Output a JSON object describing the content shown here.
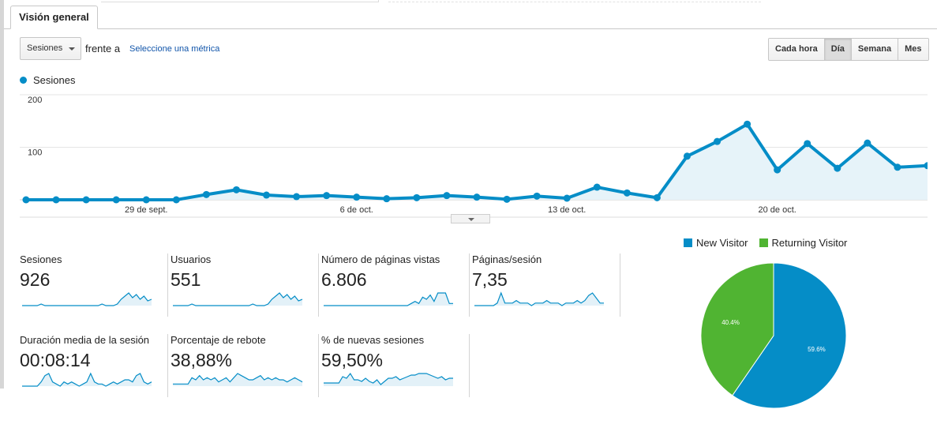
{
  "tab": {
    "label": "Visión general"
  },
  "controls": {
    "metric_select": "Sesiones",
    "versus": "frente a",
    "select_metric_link": "Seleccione una métrica",
    "periods": [
      "Cada hora",
      "Día",
      "Semana",
      "Mes"
    ],
    "active_period": "Día"
  },
  "chart_data": [
    {
      "type": "area",
      "series": [
        {
          "name": "Sesiones",
          "color": "#058dc7",
          "values": [
            0,
            0,
            0,
            0,
            0,
            0,
            10,
            19,
            9,
            6,
            8,
            5,
            2,
            4,
            8,
            5,
            1,
            7,
            3,
            24,
            13,
            4,
            83,
            111,
            144,
            57,
            107,
            60,
            108,
            62,
            65
          ]
        }
      ],
      "x_tick_labels": [
        "29 de sept.",
        "6 de oct.",
        "13 de oct.",
        "20 de oct."
      ],
      "x_tick_indices": [
        4,
        11,
        18,
        25
      ],
      "y_ticks": [
        "200",
        "100"
      ],
      "ylim": [
        0,
        200
      ],
      "grid": true
    },
    {
      "type": "pie",
      "legend": [
        "New Visitor",
        "Returning Visitor"
      ],
      "legend_position": "top",
      "values": [
        59.6,
        40.4
      ],
      "labels": [
        "59.6%",
        "40.4%"
      ],
      "colors": [
        "#058dc7",
        "#50b432"
      ]
    }
  ],
  "kpis": [
    {
      "label": "Sesiones",
      "value": "926",
      "spark": [
        0,
        0,
        0,
        0,
        0,
        1,
        0,
        0,
        0,
        0,
        0,
        0,
        0,
        0,
        0,
        0,
        0,
        0,
        0,
        0,
        0,
        1,
        0,
        0,
        0,
        1,
        4,
        6,
        8,
        5,
        7,
        4,
        6,
        3,
        4
      ]
    },
    {
      "label": "Usuarios",
      "value": "551",
      "spark": [
        0,
        0,
        0,
        0,
        0,
        1,
        0,
        0,
        0,
        0,
        0,
        0,
        0,
        0,
        0,
        0,
        0,
        0,
        0,
        0,
        0,
        1,
        0,
        0,
        0,
        1,
        4,
        6,
        8,
        5,
        7,
        4,
        6,
        3,
        4
      ]
    },
    {
      "label": "Número de páginas vistas",
      "value": "6.806",
      "spark": [
        0,
        0,
        0,
        0,
        0,
        0,
        0,
        0,
        0,
        0,
        0,
        0,
        0,
        0,
        0,
        0,
        0,
        0,
        0,
        0,
        0,
        0,
        0,
        1,
        2,
        1,
        4,
        3,
        5,
        2,
        6,
        6,
        6,
        1,
        1
      ]
    },
    {
      "label": "Páginas/sesión",
      "value": "7,35",
      "spark": [
        0,
        0,
        0,
        0,
        0,
        0,
        1,
        5,
        1,
        1,
        1,
        2,
        1,
        1,
        1,
        0,
        1,
        1,
        1,
        2,
        1,
        1,
        1,
        0,
        1,
        1,
        1,
        2,
        1,
        2,
        4,
        5,
        3,
        1,
        1
      ]
    },
    {
      "label": "Duración media de la sesión",
      "value": "00:08:14",
      "spark": [
        0,
        0,
        0,
        0,
        0,
        2,
        5,
        6,
        2,
        1,
        0,
        2,
        1,
        2,
        1,
        0,
        1,
        2,
        6,
        2,
        1,
        1,
        0,
        1,
        2,
        1,
        2,
        3,
        3,
        2,
        5,
        6,
        2,
        1,
        2
      ]
    },
    {
      "label": "Porcentaje de rebote",
      "value": "38,88%",
      "spark": [
        1,
        1,
        1,
        1,
        1,
        4,
        3,
        5,
        3,
        4,
        3,
        4,
        2,
        3,
        4,
        2,
        4,
        6,
        5,
        4,
        3,
        3,
        4,
        5,
        3,
        4,
        3,
        4,
        3,
        3,
        2,
        3,
        4,
        3,
        2
      ]
    },
    {
      "label": "% de nuevas sesiones",
      "value": "59,50%",
      "spark": [
        2,
        2,
        2,
        2,
        2,
        6,
        5,
        8,
        4,
        4,
        3,
        5,
        3,
        2,
        4,
        1,
        3,
        5,
        5,
        6,
        4,
        5,
        6,
        7,
        7,
        8,
        8,
        8,
        7,
        6,
        5,
        6,
        4,
        5,
        5
      ]
    }
  ]
}
